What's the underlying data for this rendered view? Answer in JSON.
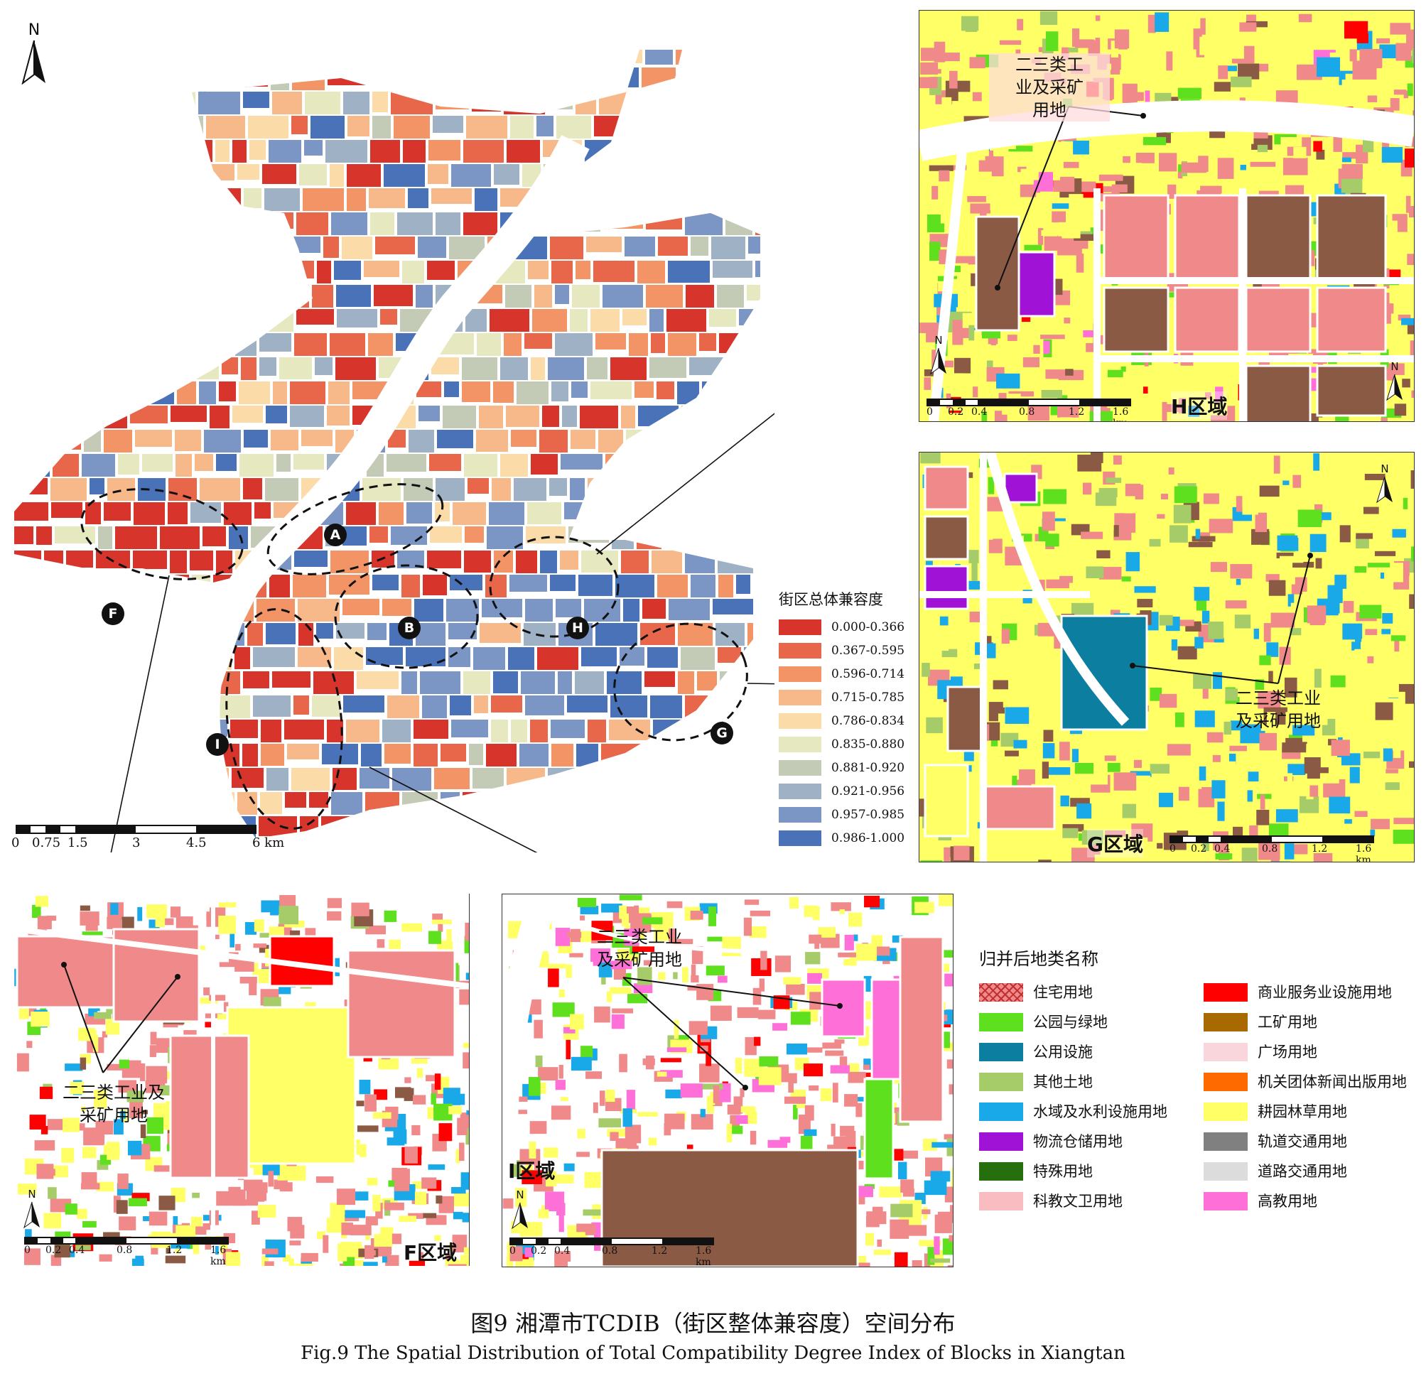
{
  "figure": {
    "caption_zh": "图9 湘潭市TCDIB（街区整体兼容度）空间分布",
    "caption_en": "Fig.9    The Spatial Distribution of Total Compatibility Degree Index of Blocks in Xiangtan"
  },
  "main_map": {
    "north_label": "N",
    "regions": [
      "A",
      "B",
      "F",
      "G",
      "H",
      "I"
    ],
    "scale": {
      "labels": [
        "0",
        "0.75",
        "1.5",
        "3",
        "4.5",
        "6 km"
      ]
    },
    "legend": {
      "title": "街区总体兼容度",
      "items": [
        {
          "label": "0.000-0.366",
          "color": "#d7342b"
        },
        {
          "label": "0.367-0.595",
          "color": "#e8664a"
        },
        {
          "label": "0.596-0.714",
          "color": "#f29466"
        },
        {
          "label": "0.715-0.785",
          "color": "#f7b98a"
        },
        {
          "label": "0.786-0.834",
          "color": "#fbdba8"
        },
        {
          "label": "0.835-0.880",
          "color": "#e6e8c0"
        },
        {
          "label": "0.881-0.920",
          "color": "#c3cbb6"
        },
        {
          "label": "0.921-0.956",
          "color": "#9fb1c4"
        },
        {
          "label": "0.957-0.985",
          "color": "#7b95c4"
        },
        {
          "label": "0.986-1.000",
          "color": "#4a72b8"
        }
      ]
    }
  },
  "insets": {
    "H": {
      "tag": "H区域",
      "callout": "二三类工\n业及采矿\n用地",
      "north": "N",
      "north2": "N",
      "scale": [
        "0",
        "0.2",
        "0.4",
        "0.8",
        "1.2",
        "1.6 km"
      ]
    },
    "G": {
      "tag": "G区域",
      "callout": "二三类工业\n及采矿用地",
      "north": "N",
      "scale": [
        "0",
        "0.2",
        "0.4",
        "0.8",
        "1.2",
        "1.6 km"
      ]
    },
    "F": {
      "tag": "F区域",
      "callout": "二三类工业及\n采矿用地",
      "north": "N",
      "scale": [
        "0",
        "0.2",
        "0.4",
        "0.8",
        "1.2",
        "1.6 km"
      ]
    },
    "I": {
      "tag": "I区域",
      "callout": "二三类工业\n及采矿用地",
      "north": "N",
      "scale": [
        "0",
        "0.2",
        "0.4",
        "0.8",
        "1.2",
        "1.6 km"
      ]
    }
  },
  "landuse_legend": {
    "title": "归并后地类名称",
    "left": [
      {
        "label": "住宅用地",
        "color": "#f08a8a",
        "hatch": true
      },
      {
        "label": "公园与绿地",
        "color": "#5fe01f"
      },
      {
        "label": "公用设施",
        "color": "#0c7fa0"
      },
      {
        "label": "其他土地",
        "color": "#a6cc6a"
      },
      {
        "label": "水域及水利设施用地",
        "color": "#1aa9e8"
      },
      {
        "label": "物流仓储用地",
        "color": "#a012d6"
      },
      {
        "label": "特殊用地",
        "color": "#266f0e"
      },
      {
        "label": "科教文卫用地",
        "color": "#f9bcc0"
      }
    ],
    "right": [
      {
        "label": "商业服务业设施用地",
        "color": "#ff0000"
      },
      {
        "label": "工矿用地",
        "color": "#a86a00"
      },
      {
        "label": "广场用地",
        "color": "#f8d6dc"
      },
      {
        "label": "机关团体新闻出版用地",
        "color": "#ff6a00"
      },
      {
        "label": "耕园林草用地",
        "color": "#ffff66"
      },
      {
        "label": "轨道交通用地",
        "color": "#808080"
      },
      {
        "label": "道路交通用地",
        "color": "#dcdcdc"
      },
      {
        "label": "高教用地",
        "color": "#ff6fd8"
      }
    ]
  }
}
